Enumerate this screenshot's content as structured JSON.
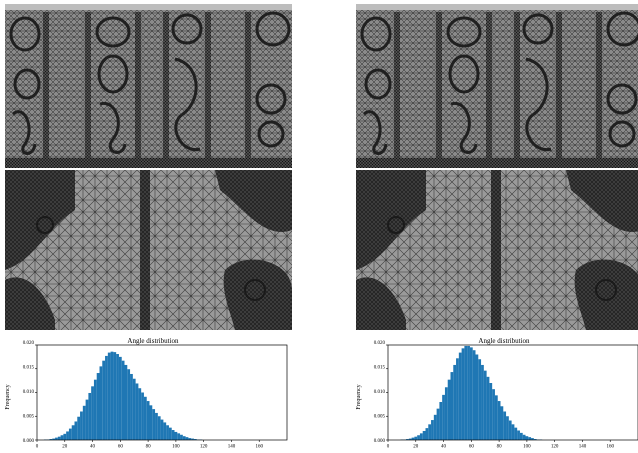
{
  "panels": [
    {
      "id": "left",
      "chart_data": {
        "type": "bar",
        "title": "Angle distribution",
        "xlabel": "",
        "ylabel": "Frequency",
        "xlim": [
          0,
          180
        ],
        "ylim": [
          0,
          0.02
        ],
        "x_ticks": [
          0,
          20,
          40,
          60,
          80,
          100,
          120,
          140,
          160
        ],
        "y_ticks": [
          "0.000",
          "0.005",
          "0.010",
          "0.015",
          "0.020"
        ],
        "bar_color": "#1f77b4",
        "x": [
          2,
          4,
          6,
          8,
          10,
          12,
          14,
          16,
          18,
          20,
          22,
          24,
          26,
          28,
          30,
          32,
          34,
          36,
          38,
          40,
          42,
          44,
          46,
          48,
          50,
          52,
          54,
          56,
          58,
          60,
          62,
          64,
          66,
          68,
          70,
          72,
          74,
          76,
          78,
          80,
          82,
          84,
          86,
          88,
          90,
          92,
          94,
          96,
          98,
          100,
          102,
          104,
          106,
          108,
          110,
          112,
          114,
          116,
          118,
          120,
          122,
          124,
          126,
          128,
          130,
          132,
          134,
          136,
          138,
          140,
          142,
          144,
          146,
          148,
          150,
          152,
          154,
          156,
          158,
          160,
          162,
          164,
          166,
          168,
          170,
          172,
          174,
          176,
          178
        ],
        "values": [
          0.0,
          0.0,
          0.0001,
          0.0001,
          0.0002,
          0.0003,
          0.0005,
          0.0007,
          0.001,
          0.0013,
          0.0018,
          0.0024,
          0.0031,
          0.0039,
          0.0049,
          0.006,
          0.0072,
          0.0085,
          0.0099,
          0.0113,
          0.0127,
          0.0141,
          0.0155,
          0.0167,
          0.0177,
          0.0184,
          0.0186,
          0.0185,
          0.0181,
          0.0175,
          0.0167,
          0.0158,
          0.0149,
          0.0139,
          0.0129,
          0.0119,
          0.0109,
          0.01,
          0.0091,
          0.0082,
          0.0073,
          0.0065,
          0.0057,
          0.005,
          0.0043,
          0.0037,
          0.0031,
          0.0026,
          0.0021,
          0.0017,
          0.0014,
          0.0011,
          0.0008,
          0.0006,
          0.0004,
          0.0003,
          0.0002,
          0.0001,
          0.0001,
          0.0,
          0.0,
          0.0,
          0.0,
          0.0,
          0.0,
          0.0,
          0.0,
          0.0,
          0.0,
          0.0,
          0.0,
          0.0,
          0.0,
          0.0,
          0.0,
          0.0,
          0.0,
          0.0,
          0.0,
          0.0,
          0.0,
          0.0,
          0.0,
          0.0,
          0.0,
          0.0,
          0.0,
          0.0,
          0.0
        ]
      }
    },
    {
      "id": "right",
      "chart_data": {
        "type": "bar",
        "title": "Angle distribution",
        "xlabel": "",
        "ylabel": "Frequency",
        "xlim": [
          0,
          180
        ],
        "ylim": [
          0,
          0.02
        ],
        "x_ticks": [
          0,
          20,
          40,
          60,
          80,
          100,
          120,
          140,
          160
        ],
        "y_ticks": [
          "0.000",
          "0.005",
          "0.010",
          "0.015",
          "0.020"
        ],
        "bar_color": "#1f77b4",
        "x": [
          2,
          4,
          6,
          8,
          10,
          12,
          14,
          16,
          18,
          20,
          22,
          24,
          26,
          28,
          30,
          32,
          34,
          36,
          38,
          40,
          42,
          44,
          46,
          48,
          50,
          52,
          54,
          56,
          58,
          60,
          62,
          64,
          66,
          68,
          70,
          72,
          74,
          76,
          78,
          80,
          82,
          84,
          86,
          88,
          90,
          92,
          94,
          96,
          98,
          100,
          102,
          104,
          106,
          108,
          110,
          112,
          114,
          116,
          118,
          120,
          122,
          124,
          126,
          128,
          130,
          132,
          134,
          136,
          138,
          140,
          142,
          144,
          146,
          148,
          150,
          152,
          154,
          156,
          158,
          160,
          162,
          164,
          166,
          168,
          170,
          172,
          174,
          176,
          178
        ],
        "values": [
          0.0,
          0.0,
          0.0,
          0.0,
          0.0001,
          0.0001,
          0.0002,
          0.0003,
          0.0005,
          0.0007,
          0.001,
          0.0014,
          0.0019,
          0.0025,
          0.0033,
          0.0042,
          0.0053,
          0.0066,
          0.008,
          0.0095,
          0.0111,
          0.0127,
          0.0143,
          0.0158,
          0.0172,
          0.0184,
          0.0193,
          0.0198,
          0.0198,
          0.0195,
          0.0189,
          0.018,
          0.017,
          0.0158,
          0.0146,
          0.0133,
          0.012,
          0.0107,
          0.0094,
          0.0082,
          0.0071,
          0.006,
          0.005,
          0.0041,
          0.0033,
          0.0026,
          0.002,
          0.0015,
          0.0011,
          0.0008,
          0.0006,
          0.0004,
          0.0002,
          0.0001,
          0.0001,
          0.0,
          0.0,
          0.0,
          0.0,
          0.0,
          0.0,
          0.0,
          0.0,
          0.0,
          0.0,
          0.0,
          0.0,
          0.0,
          0.0,
          0.0,
          0.0,
          0.0,
          0.0,
          0.0,
          0.0,
          0.0,
          0.0,
          0.0,
          0.0,
          0.0,
          0.0,
          0.0,
          0.0,
          0.0,
          0.0,
          0.0,
          0.0,
          0.0,
          0.0
        ]
      }
    }
  ]
}
